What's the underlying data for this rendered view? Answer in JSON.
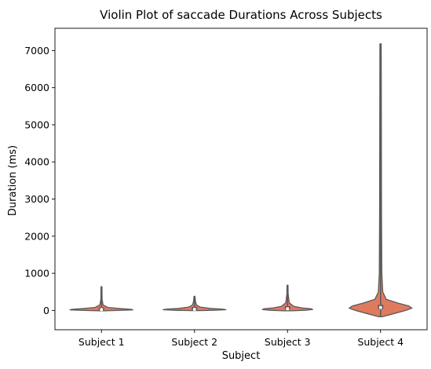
{
  "chart_data": {
    "type": "violin",
    "title": "Violin Plot of saccade Durations Across Subjects",
    "xlabel": "Subject",
    "ylabel": "Duration (ms)",
    "ylim": [
      -520,
      7600
    ],
    "yticks": [
      0,
      1000,
      2000,
      3000,
      4000,
      5000,
      6000,
      7000
    ],
    "ytick_labels": [
      "0",
      "1000",
      "2000",
      "3000",
      "4000",
      "5000",
      "6000",
      "7000"
    ],
    "categories": [
      "Subject 1",
      "Subject 2",
      "Subject 3",
      "Subject 4"
    ],
    "grid": false,
    "legend": "none",
    "colors": {
      "violin_fill": "#e07a5f",
      "violin_edge": "#5a5a5a",
      "box": "#5a5a5a",
      "median": "#ffffff"
    },
    "violins": [
      {
        "name": "Subject 1",
        "min": -10,
        "q1": 5,
        "median": 25,
        "q3": 60,
        "max": 640,
        "profile": [
          [
            -10,
            0.1
          ],
          [
            0,
            0.55
          ],
          [
            15,
            1.0
          ],
          [
            30,
            0.95
          ],
          [
            50,
            0.6
          ],
          [
            80,
            0.2
          ],
          [
            150,
            0.05
          ],
          [
            300,
            0.02
          ],
          [
            640,
            0.015
          ]
        ]
      },
      {
        "name": "Subject 2",
        "min": -5,
        "q1": 10,
        "median": 30,
        "q3": 70,
        "max": 380,
        "profile": [
          [
            -5,
            0.1
          ],
          [
            5,
            0.6
          ],
          [
            20,
            1.0
          ],
          [
            35,
            0.9
          ],
          [
            55,
            0.5
          ],
          [
            90,
            0.18
          ],
          [
            150,
            0.06
          ],
          [
            250,
            0.03
          ],
          [
            380,
            0.015
          ]
        ]
      },
      {
        "name": "Subject 3",
        "min": -10,
        "q1": 15,
        "median": 45,
        "q3": 90,
        "max": 680,
        "profile": [
          [
            -10,
            0.1
          ],
          [
            5,
            0.55
          ],
          [
            25,
            0.8
          ],
          [
            45,
            0.75
          ],
          [
            70,
            0.45
          ],
          [
            110,
            0.2
          ],
          [
            200,
            0.06
          ],
          [
            300,
            0.04
          ],
          [
            450,
            0.02
          ],
          [
            680,
            0.015
          ]
        ]
      },
      {
        "name": "Subject 4",
        "min": -170,
        "q1": 40,
        "median": 80,
        "q3": 150,
        "max": 7180,
        "profile": [
          [
            -170,
            0.05
          ],
          [
            -80,
            0.45
          ],
          [
            0,
            0.8
          ],
          [
            60,
            1.0
          ],
          [
            120,
            0.9
          ],
          [
            200,
            0.55
          ],
          [
            300,
            0.18
          ],
          [
            500,
            0.07
          ],
          [
            1000,
            0.04
          ],
          [
            2500,
            0.03
          ],
          [
            5000,
            0.025
          ],
          [
            7180,
            0.02
          ]
        ]
      }
    ]
  }
}
